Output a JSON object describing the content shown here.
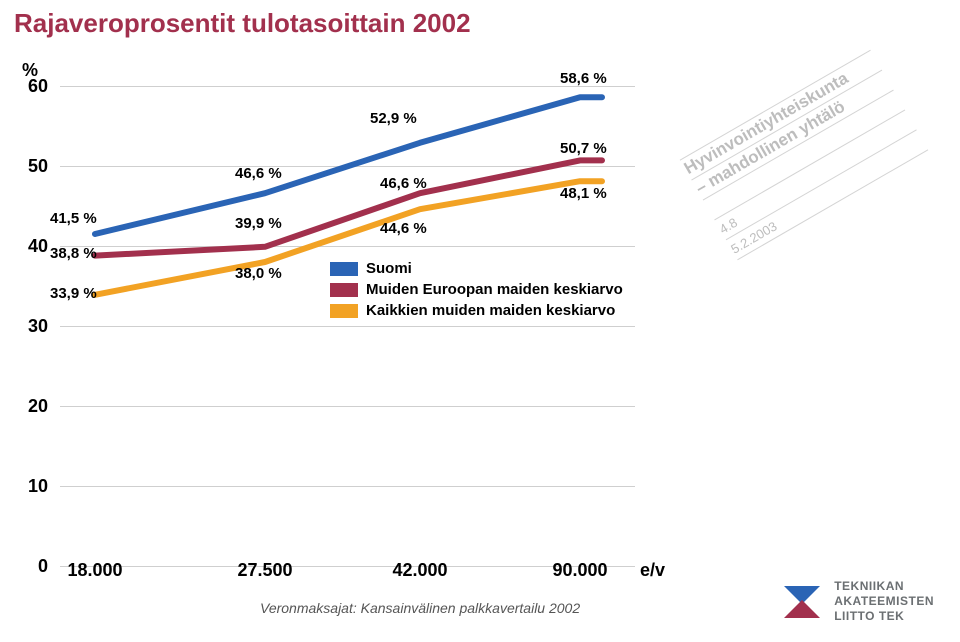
{
  "title": "Rajaveroprosentit tulotasoittain 2002",
  "title_color": "#a2304d",
  "background_color": "#ffffff",
  "chart": {
    "type": "line",
    "y_axis_label": "%",
    "ylim": [
      0,
      60
    ],
    "ytick_step": 10,
    "yticks": [
      60,
      50,
      40,
      30,
      20,
      10,
      0
    ],
    "x_categories": [
      "18.000",
      "27.500",
      "42.000",
      "90.000"
    ],
    "x_unit": "e/v",
    "grid_color": "#cfcfcf",
    "label_fontsize": 18,
    "series": [
      {
        "name": "Suomi",
        "color": "#2a64b5",
        "line_width": 6,
        "values": [
          41.5,
          46.6,
          52.9,
          58.6
        ],
        "labels": [
          "41,5 %",
          "46,6 %",
          "52,9 %",
          "58,6 %"
        ]
      },
      {
        "name": "Muiden Euroopan maiden keskiarvo",
        "color": "#a2304d",
        "line_width": 6,
        "values": [
          38.8,
          39.9,
          46.6,
          50.7
        ],
        "labels": [
          "38,8 %",
          "39,9 %",
          "46,6 %",
          "50,7 %"
        ]
      },
      {
        "name": "Kaikkien muiden maiden keskiarvo",
        "color": "#f2a224",
        "line_width": 6,
        "values": [
          33.9,
          38.0,
          44.6,
          48.1
        ],
        "labels": [
          "33,9 %",
          "38,0 %",
          "44,6 %",
          "48,1 %"
        ]
      }
    ]
  },
  "legend": [
    {
      "label": "Suomi",
      "color": "#2a64b5"
    },
    {
      "label": "Muiden Euroopan maiden keskiarvo",
      "color": "#a2304d"
    },
    {
      "label": "Kaikkien muiden maiden keskiarvo",
      "color": "#f2a224"
    }
  ],
  "stamp": {
    "line1": "Hyvinvointiyhteiskunta",
    "line2": "– mahdollinen yhtälö",
    "line3": "4.8",
    "line4": "5.2.2003",
    "color": "#bdbdbd"
  },
  "footer_source": "Veronmaksajat: Kansainvälinen palkkavertailu 2002",
  "logo": {
    "line1": "TEKNIIKAN",
    "line2": "AKATEEMISTEN",
    "line3": "LIITTO TEK",
    "text_color": "#6b6f72",
    "mark_blue": "#2a64b5",
    "mark_red": "#a2304d"
  }
}
